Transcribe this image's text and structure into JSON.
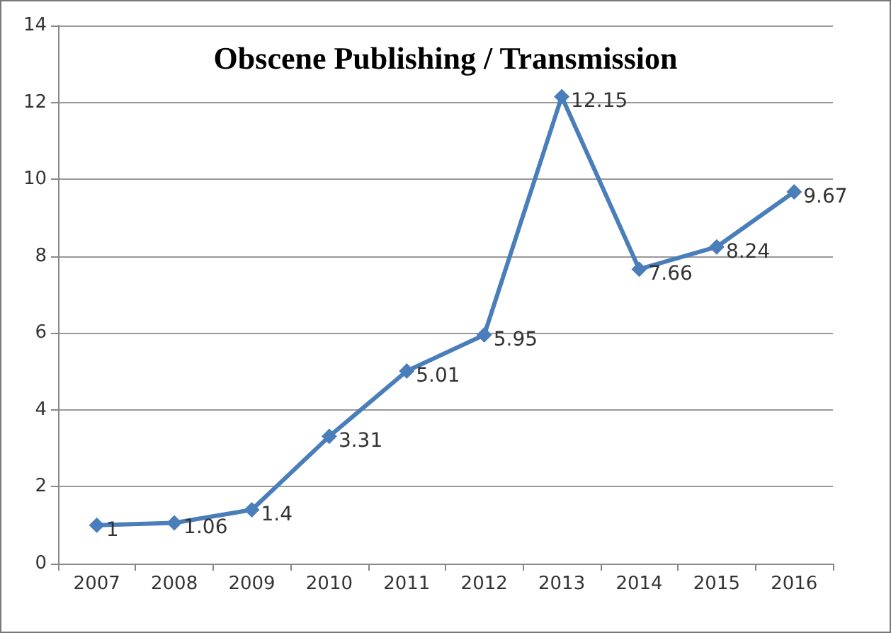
{
  "chart_data": {
    "type": "line",
    "title": "Obscene Publishing / Transmission",
    "categories": [
      "2007",
      "2008",
      "2009",
      "2010",
      "2011",
      "2012",
      "2013",
      "2014",
      "2015",
      "2016"
    ],
    "series": [
      {
        "color": "#4a7ebb",
        "values": [
          1,
          1.06,
          1.4,
          3.31,
          5.01,
          5.95,
          12.15,
          7.66,
          8.24,
          9.67
        ]
      }
    ],
    "ylim": [
      0,
      14
    ],
    "yticks": [
      0,
      2,
      4,
      6,
      8,
      10,
      12,
      14
    ],
    "grid": "y",
    "marker": "diamond",
    "line_style": "solid",
    "data_labels": true
  }
}
